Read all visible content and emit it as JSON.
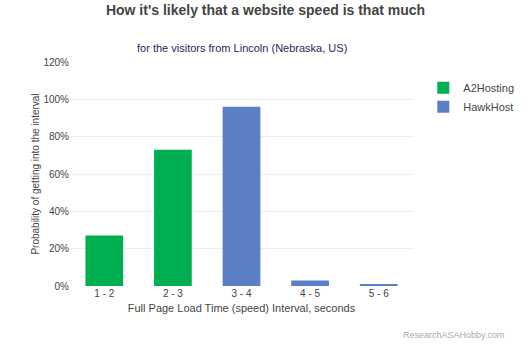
{
  "chart_data": {
    "type": "bar",
    "title": "How it's likely that a website speed is that much",
    "subtitle": "for the visitors from Lincoln (Nebraska, US)",
    "x_label": "Full Page Load Time (speed) Interval, seconds",
    "y_label": "Probability of getting into the interval",
    "categories": [
      "1 - 2",
      "2 - 3",
      "3 - 4",
      "4 - 5",
      "5 - 6"
    ],
    "series": [
      {
        "name": "A2Hosting",
        "color": "#00b050",
        "values": [
          0.27,
          0.73,
          0.0,
          0.0,
          0.0
        ]
      },
      {
        "name": "HawkHost",
        "color": "#5b7fc4",
        "values": [
          0.0,
          0.0,
          0.96,
          0.03,
          0.01
        ]
      }
    ],
    "ylim": [
      0,
      1.2
    ],
    "yticks": [
      {
        "value": 0.0,
        "label": "0%"
      },
      {
        "value": 0.2,
        "label": "20%"
      },
      {
        "value": 0.4,
        "label": "40%"
      },
      {
        "value": 0.6,
        "label": "60%"
      },
      {
        "value": 0.8,
        "label": "80%"
      },
      {
        "value": 1.0,
        "label": "100%"
      },
      {
        "value": 1.2,
        "label": "120%"
      }
    ],
    "grid": true,
    "legend": "right",
    "annotations": [
      "ResearchASAHobby.com"
    ]
  }
}
